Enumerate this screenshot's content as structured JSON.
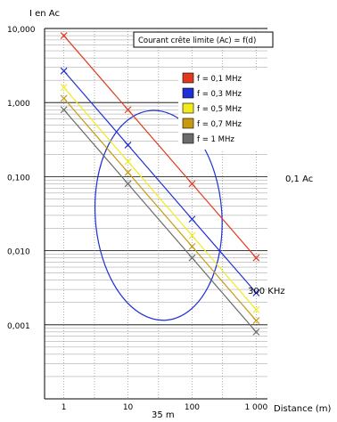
{
  "chart_data": {
    "type": "line",
    "title": "Courant crête limite (Ac) = f(d)",
    "ylabel": "I en Ac",
    "xlabel": "Distance (m)",
    "x_scale": "log",
    "y_scale": "log",
    "xlim": [
      0.5,
      1500
    ],
    "ylim": [
      0.0001,
      10
    ],
    "grid": true,
    "legend_position": "top-right",
    "x_ticks": [
      {
        "value": 1,
        "label": "1"
      },
      {
        "value": 10,
        "label": "10"
      },
      {
        "value": 100,
        "label": "100"
      },
      {
        "value": 1000,
        "label": "1 000"
      }
    ],
    "y_ticks": [
      {
        "value": 10,
        "label": "10,000"
      },
      {
        "value": 1,
        "label": "1,000"
      },
      {
        "value": 0.1,
        "label": "0,100"
      },
      {
        "value": 0.01,
        "label": "0,010"
      },
      {
        "value": 0.001,
        "label": "0,001"
      }
    ],
    "series": [
      {
        "name": "f = 0,1 MHz",
        "color": "#e03a1e",
        "x": [
          1,
          10,
          100,
          1000
        ],
        "y": [
          8,
          0.8,
          0.08,
          0.008
        ]
      },
      {
        "name": "f = 0,3 MHz",
        "color": "#1f2fd6",
        "x": [
          1,
          10,
          100,
          1000
        ],
        "y": [
          2.67,
          0.267,
          0.0267,
          0.0027
        ]
      },
      {
        "name": "f = 0,5 MHz",
        "color": "#f2ea1c",
        "x": [
          1,
          10,
          100,
          1000
        ],
        "y": [
          1.6,
          0.16,
          0.016,
          0.0016
        ]
      },
      {
        "name": "f = 0,7 MHz",
        "color": "#c89a10",
        "x": [
          1,
          10,
          100,
          1000
        ],
        "y": [
          1.14,
          0.114,
          0.0114,
          0.00114
        ]
      },
      {
        "name": "f = 1 MHz",
        "color": "#6b6b6b",
        "x": [
          1,
          10,
          100,
          1000
        ],
        "y": [
          0.8,
          0.08,
          0.008,
          0.0008
        ]
      }
    ],
    "annotations": [
      {
        "text": "0,1 Ac"
      },
      {
        "text": "300 KHz"
      },
      {
        "text": "35 m"
      }
    ],
    "highlight_ellipse": {
      "color": "#1f2fd6",
      "center_x_data": 30,
      "center_y_data": 0.03
    }
  }
}
